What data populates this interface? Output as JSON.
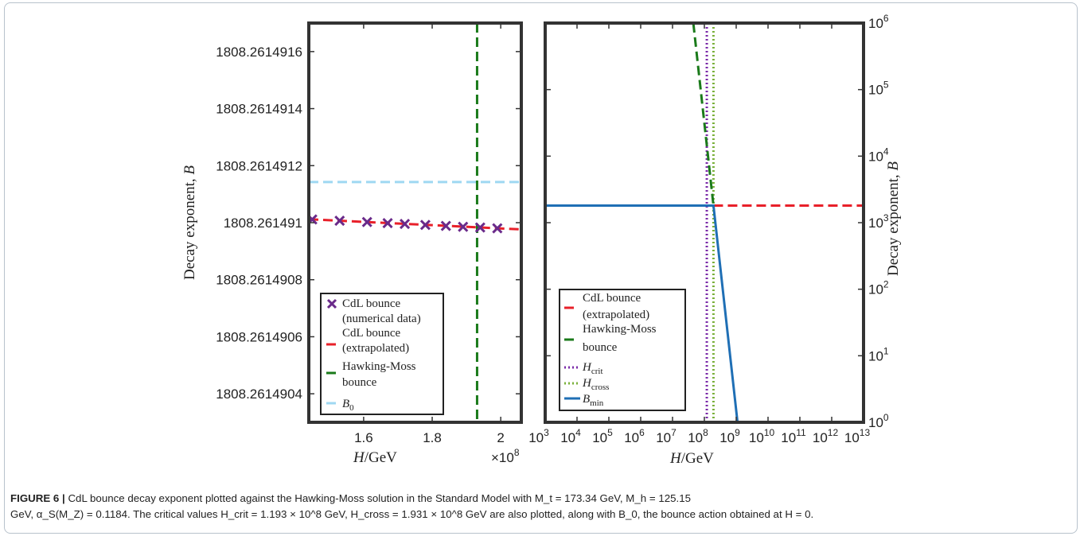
{
  "colors": {
    "cdl_marker": "#6a2a8a",
    "cdl_extrapolated": "#e8202a",
    "hawking_moss": "#1a7a1a",
    "b0": "#9fd8f2",
    "h_crit": "#7a2aa8",
    "h_cross": "#7ab03a",
    "b_min": "#1f6fb5",
    "axes": "#333333"
  },
  "chart_data": [
    {
      "type": "scatter",
      "xlabel": "H/GeV",
      "ylabel": "Decay exponent, B",
      "x_multiplier": "×10^8",
      "xlim": [
        1.44,
        2.06
      ],
      "ylim": [
        1808.2614903,
        1808.2614917
      ],
      "x_ticks": [
        1.6,
        1.8,
        2.0
      ],
      "x_tick_labels": [
        "1.6",
        "1.8",
        "2"
      ],
      "y_ticks": [
        1808.2614904,
        1808.2614906,
        1808.2614908,
        1808.261491,
        1808.2614912,
        1808.2614914,
        1808.2614916
      ],
      "y_tick_labels": [
        "1808.2614904",
        "1808.2614906",
        "1808.2614908",
        "1808.261491",
        "1808.2614912",
        "1808.2614914",
        "1808.2614916"
      ],
      "series": [
        {
          "name": "CdL bounce (numerical data)",
          "kind": "markers",
          "x": [
            1.45,
            1.53,
            1.61,
            1.67,
            1.72,
            1.78,
            1.84,
            1.89,
            1.94,
            1.99
          ],
          "y": [
            1808.2614910114,
            1808.2614910067,
            1808.2614910021,
            1808.2614909986,
            1808.2614909955,
            1808.2614909921,
            1808.2614909887,
            1808.2614909857,
            1808.2614909831,
            1808.2614909803
          ]
        },
        {
          "name": "CdL bounce (extrapolated)",
          "kind": "dashed-line",
          "x": [
            1.44,
            2.06
          ],
          "y": [
            1808.261491012,
            1808.2614909764
          ]
        },
        {
          "name": "Hawking-Moss bounce",
          "kind": "vertical-dashed",
          "x": [
            1.931
          ]
        },
        {
          "name": "B0",
          "kind": "horizontal-dashed",
          "y": [
            1808.2614911426
          ]
        }
      ],
      "legend": {
        "position": "bottom-left",
        "entries": [
          {
            "line1": "CdL bounce",
            "line2": "(numerical data)"
          },
          {
            "line1": "CdL bounce",
            "line2": "(extrapolated)"
          },
          {
            "line1": "Hawking-Moss",
            "line2": "bounce"
          },
          {
            "line1": "B",
            "sub": "0"
          }
        ]
      }
    },
    {
      "type": "line",
      "xlabel": "H/GeV",
      "ylabel": "Decay exponent, B",
      "x_scale": "log",
      "y_scale": "log",
      "xlim": [
        1000,
        10000000000000
      ],
      "ylim": [
        1,
        1000000
      ],
      "x_tick_exponents": [
        3,
        4,
        5,
        6,
        7,
        8,
        9,
        10,
        11,
        12,
        13
      ],
      "y_tick_exponents": [
        0,
        1,
        2,
        3,
        4,
        5,
        6
      ],
      "y_axis_side": "right",
      "series": [
        {
          "name": "CdL bounce (extrapolated)",
          "kind": "dashed-line",
          "x": [
            193100000,
            10000000000000
          ],
          "y": [
            1808.26,
            1808.26
          ]
        },
        {
          "name": "Hawking-Moss bounce",
          "kind": "dashed-line",
          "x": [
            45000000,
            193100000
          ],
          "y": [
            1000000,
            1808.26
          ]
        },
        {
          "name": "H_crit",
          "kind": "vertical-dotted",
          "x": [
            119300000
          ]
        },
        {
          "name": "H_cross",
          "kind": "vertical-dotted",
          "x": [
            193100000
          ]
        },
        {
          "name": "B_min",
          "kind": "solid-line",
          "x": [
            1000,
            193100000,
            1100000000
          ],
          "y": [
            1808.26,
            1808.26,
            1
          ]
        }
      ],
      "legend": {
        "position": "bottom-left",
        "entries": [
          {
            "line1": "CdL bounce",
            "line2": "(extrapolated)"
          },
          {
            "line1": "Hawking-Moss",
            "line2": " bounce"
          },
          {
            "line1": "H",
            "sub": "crit"
          },
          {
            "line1": "H",
            "sub": "cross"
          },
          {
            "line1": "B",
            "sub": "min"
          }
        ]
      }
    }
  ],
  "caption": {
    "figure_label": "FIGURE 6 |",
    "line1": " CdL bounce decay exponent plotted against the Hawking-Moss solution in the Standard Model with M_t = 173.34 GeV, M_h = 125.15",
    "line2": "GeV, α_S(M_Z) = 0.1184. The critical values H_crit = 1.193 × 10^8 GeV, H_cross = 1.931 × 10^8 GeV are also plotted, along with B_0, the bounce action obtained at H = 0."
  }
}
